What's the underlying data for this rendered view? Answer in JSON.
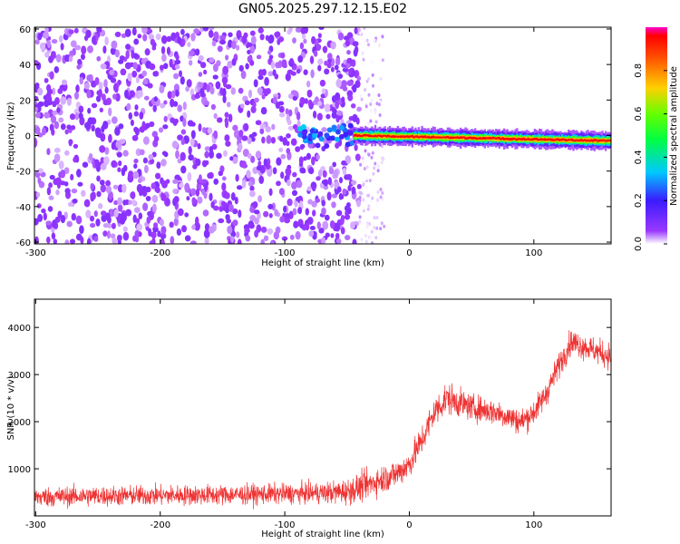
{
  "figure": {
    "title": "GN05.2025.297.12.15.E02"
  },
  "chart_data": [
    {
      "type": "heatmap",
      "xlabel": "Height of straight line (km)",
      "ylabel": "Frequency (Hz)",
      "xlim": [
        -301,
        162
      ],
      "ylim": [
        -61,
        61
      ],
      "x_ticks": [
        -300,
        -200,
        -100,
        0,
        100
      ],
      "y_ticks": [
        -60,
        -40,
        -20,
        0,
        20,
        40,
        60
      ],
      "colorbar": {
        "label": "Normalized spectral amplitude",
        "range": [
          0,
          1
        ],
        "ticks": [
          0.0,
          0.2,
          0.4,
          0.6,
          0.8
        ],
        "colormap": "rainbow (violet at 0, blue, cyan, green, yellow, red near 1)"
      },
      "features": [
        {
          "description": "scattered low-amplitude noise, violet",
          "x_range": [
            -301,
            -40
          ],
          "y_range": [
            -61,
            61
          ],
          "amplitude": [
            0.02,
            0.1
          ]
        },
        {
          "description": "faint noise tail",
          "x_range": [
            -40,
            -20
          ],
          "y_range": [
            -61,
            61
          ],
          "amplitude": [
            0.0,
            0.04
          ]
        },
        {
          "description": "blobs near 0 Hz",
          "x_range": [
            -90,
            -45
          ],
          "y_range": [
            -6,
            6
          ],
          "amplitude": [
            0.15,
            0.35
          ]
        },
        {
          "description": "narrow band near 0 Hz, red core",
          "x_range": [
            -45,
            162
          ],
          "y_center_start": 0,
          "y_center_end": -3,
          "core_amplitude": 0.95
        }
      ]
    },
    {
      "type": "line",
      "xlabel": "Height of straight line (km)",
      "ylabel": "SNR (10 * v/v)",
      "xlim": [
        -301,
        162
      ],
      "ylim": [
        0,
        4600
      ],
      "x_ticks": [
        -300,
        -200,
        -100,
        0,
        100
      ],
      "y_ticks": [
        1000,
        2000,
        3000,
        4000
      ],
      "series": [
        {
          "color": "#ee3333",
          "x": [
            -300,
            -260,
            -220,
            -180,
            -140,
            -100,
            -80,
            -60,
            -50,
            -40,
            -30,
            -20,
            -10,
            0,
            10,
            20,
            30,
            40,
            50,
            60,
            70,
            80,
            90,
            100,
            110,
            120,
            130,
            140,
            150,
            160
          ],
          "y": [
            400,
            420,
            430,
            440,
            450,
            470,
            480,
            500,
            520,
            600,
            700,
            800,
            900,
            1100,
            1600,
            2200,
            2500,
            2400,
            2300,
            2250,
            2200,
            2100,
            2000,
            2200,
            2600,
            3200,
            3700,
            3600,
            3500,
            3400
          ],
          "noise_amplitude": [
            350,
            350,
            350,
            350,
            350,
            350,
            350,
            400,
            450,
            500,
            500,
            500,
            500,
            500,
            550,
            550,
            550,
            500,
            450,
            450,
            450,
            450,
            450,
            450,
            450,
            450,
            450,
            450,
            450,
            450
          ]
        }
      ]
    }
  ]
}
